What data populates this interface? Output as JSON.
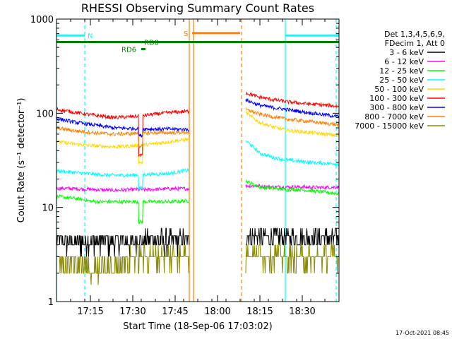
{
  "chart_data": {
    "type": "line",
    "title": "RHESSI Observing Summary Count Rates",
    "xlabel": "Start Time (18-Sep-06 17:03:02)",
    "ylabel": "Count Rate (s⁻¹ detector⁻¹)",
    "y_scale": "log",
    "ylim": [
      1,
      1000
    ],
    "xlim_minutes": [
      0,
      100
    ],
    "y_ticks": [
      {
        "value": 1,
        "label": "1"
      },
      {
        "value": 10,
        "label": "10"
      },
      {
        "value": 100,
        "label": "100"
      },
      {
        "value": 1000,
        "label": "1000"
      }
    ],
    "x_ticks": [
      {
        "minute": 12,
        "label": "17:15"
      },
      {
        "minute": 27,
        "label": "17:30"
      },
      {
        "minute": 42,
        "label": "17:45"
      },
      {
        "minute": 57,
        "label": "18:00"
      },
      {
        "minute": 72,
        "label": "18:15"
      },
      {
        "minute": 87,
        "label": "18:30"
      }
    ],
    "legend": {
      "header": [
        "Det 1,3,4,5,6,9,",
        "FDecim 1, Att 0"
      ],
      "placement": "right"
    },
    "gaps": [
      [
        47,
        67
      ]
    ],
    "series": [
      {
        "name": "3 - 6 keV",
        "color": "#000000",
        "before": [
          4.3,
          4.3,
          4.4,
          4.4,
          4.3,
          4.6,
          4.5,
          4.6
        ],
        "after": [
          5.0,
          5.0,
          4.9,
          4.8,
          4.8,
          4.8,
          4.7,
          4.7
        ],
        "dip": null
      },
      {
        "name": "6 - 12 keV",
        "color": "#ff00ff",
        "before": [
          16.0,
          15.8,
          15.5,
          15.2,
          15.5,
          15.5,
          15.8,
          15.8
        ],
        "after": [
          17.0,
          16.8,
          16.5,
          16.5,
          16.5,
          16.3,
          16.3,
          16.5
        ],
        "dip": null
      },
      {
        "name": "12 - 25 keV",
        "color": "#00ff00",
        "before": [
          13.0,
          12.5,
          11.5,
          11.5,
          11.5,
          11.5,
          11.5,
          11.8
        ],
        "after": [
          19.0,
          16.5,
          16.0,
          15.5,
          15.5,
          15.0,
          14.5,
          14.0
        ],
        "dip": 7.0
      },
      {
        "name": "25 - 50 keV",
        "color": "#00ffff",
        "before": [
          24.5,
          23.5,
          22.5,
          22.0,
          22.0,
          22.5,
          23.0,
          25.0
        ],
        "after": [
          51.0,
          38.0,
          34.0,
          32.0,
          31.0,
          30.0,
          29.5,
          29.0
        ],
        "dip": 16.0
      },
      {
        "name": "50 - 100 keV",
        "color": "#ffd700",
        "before": [
          50.0,
          47.0,
          45.0,
          44.0,
          45.0,
          47.0,
          50.0,
          53.0
        ],
        "after": [
          101.0,
          80.0,
          72.0,
          66.0,
          64.0,
          62.0,
          60.0,
          58.0
        ],
        "dip": 30.0
      },
      {
        "name": "100 - 300 keV",
        "color": "#ff0000",
        "before": [
          110.0,
          102.0,
          95.0,
          90.0,
          92.0,
          97.0,
          102.0,
          105.0
        ],
        "after": [
          165.0,
          148.0,
          140.0,
          133.0,
          128.0,
          125.0,
          122.0,
          118.0
        ],
        "dip": 36.0
      },
      {
        "name": "300 - 800 keV",
        "color": "#0000ff",
        "before": [
          88.0,
          80.0,
          75.0,
          70.0,
          69.0,
          68.0,
          68.0,
          67.0
        ],
        "after": [
          138.0,
          122.0,
          115.0,
          110.0,
          105.0,
          100.0,
          96.0,
          92.0
        ],
        "dip": 58.0
      },
      {
        "name": "800 - 7000 keV",
        "color": "#ff7f00",
        "before": [
          70.0,
          65.0,
          62.0,
          60.0,
          61.0,
          62.0,
          62.0,
          63.0
        ],
        "after": [
          110.0,
          98.0,
          92.0,
          87.0,
          84.0,
          81.0,
          78.0,
          75.0
        ],
        "dip": 45.0
      },
      {
        "name": "7000 - 15000 keV",
        "color": "#8b8b00",
        "before": [
          2.8,
          2.5,
          2.2,
          2.3,
          3.0,
          3.0,
          3.1,
          3.1
        ],
        "after": [
          3.2,
          3.2,
          3.1,
          3.0,
          3.0,
          3.0,
          3.1,
          3.0
        ],
        "dip": null
      }
    ],
    "flags": [
      {
        "label": "N",
        "color": "#00ffff",
        "bars": [
          [
            0,
            10
          ],
          [
            81,
            100
          ]
        ],
        "level": 670,
        "label_minute": 11
      },
      {
        "label": "S",
        "color": "#ff7f00",
        "bars": [
          [
            48,
            65
          ]
        ],
        "level": 710,
        "label_minute": 45
      },
      {
        "label": "RD0",
        "color": "#008000",
        "bars": [
          [
            0,
            100
          ]
        ],
        "level": 570,
        "label_minute": 31
      },
      {
        "label": "RD6",
        "color": "#008000",
        "bars": [
          [
            30,
            31.5
          ]
        ],
        "level": 480,
        "label_minute": 23
      }
    ],
    "vertical_markers": [
      {
        "minute": 0,
        "color": "#00ffff",
        "style": "solid"
      },
      {
        "minute": 10,
        "color": "#00ffff",
        "style": "dashed"
      },
      {
        "minute": 47,
        "color": "#ff7f00",
        "style": "solid"
      },
      {
        "minute": 48.5,
        "color": "#ff7f00",
        "style": "solid"
      },
      {
        "minute": 65.5,
        "color": "#ff7f00",
        "style": "dashed"
      },
      {
        "minute": 81,
        "color": "#00ffff",
        "style": "solid"
      },
      {
        "minute": 99,
        "color": "#00ffff",
        "style": "dashed"
      }
    ]
  },
  "footer": {
    "timestamp": "17-Oct-2021 08:45"
  }
}
